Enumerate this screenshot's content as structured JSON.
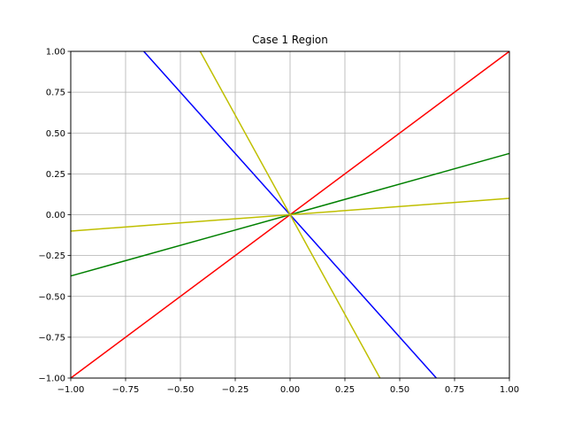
{
  "chart_data": {
    "type": "line",
    "title": "Case 1 Region",
    "xlabel": "",
    "ylabel": "",
    "xlim": [
      -1.0,
      1.0
    ],
    "ylim": [
      -1.0,
      1.0
    ],
    "grid": true,
    "x_ticks": [
      -1.0,
      -0.75,
      -0.5,
      -0.25,
      0.0,
      0.25,
      0.5,
      0.75,
      1.0
    ],
    "x_tick_labels": [
      "−1.00",
      "−0.75",
      "−0.50",
      "−0.25",
      "0.00",
      "0.25",
      "0.50",
      "0.75",
      "1.00"
    ],
    "y_ticks": [
      -1.0,
      -0.75,
      -0.5,
      -0.25,
      0.0,
      0.25,
      0.5,
      0.75,
      1.0
    ],
    "y_tick_labels": [
      "−1.00",
      "−0.75",
      "−0.50",
      "−0.25",
      "0.00",
      "0.25",
      "0.50",
      "0.75",
      "1.00"
    ],
    "series": [
      {
        "color": "#ff0000",
        "x": [
          -1.0,
          1.0
        ],
        "y": [
          -1.0,
          1.0
        ]
      },
      {
        "color": "#008000",
        "x": [
          -1.0,
          1.0
        ],
        "y": [
          -0.375,
          0.375
        ]
      },
      {
        "color": "#0000ff",
        "x": [
          -0.667,
          0.667
        ],
        "y": [
          1.0,
          -1.0
        ]
      },
      {
        "color": "#bfbf00",
        "x": [
          -1.0,
          1.0
        ],
        "y": [
          -0.1,
          0.1
        ]
      },
      {
        "color": "#bfbf00",
        "x": [
          -0.41,
          0.41
        ],
        "y": [
          1.0,
          -1.0
        ]
      }
    ]
  }
}
